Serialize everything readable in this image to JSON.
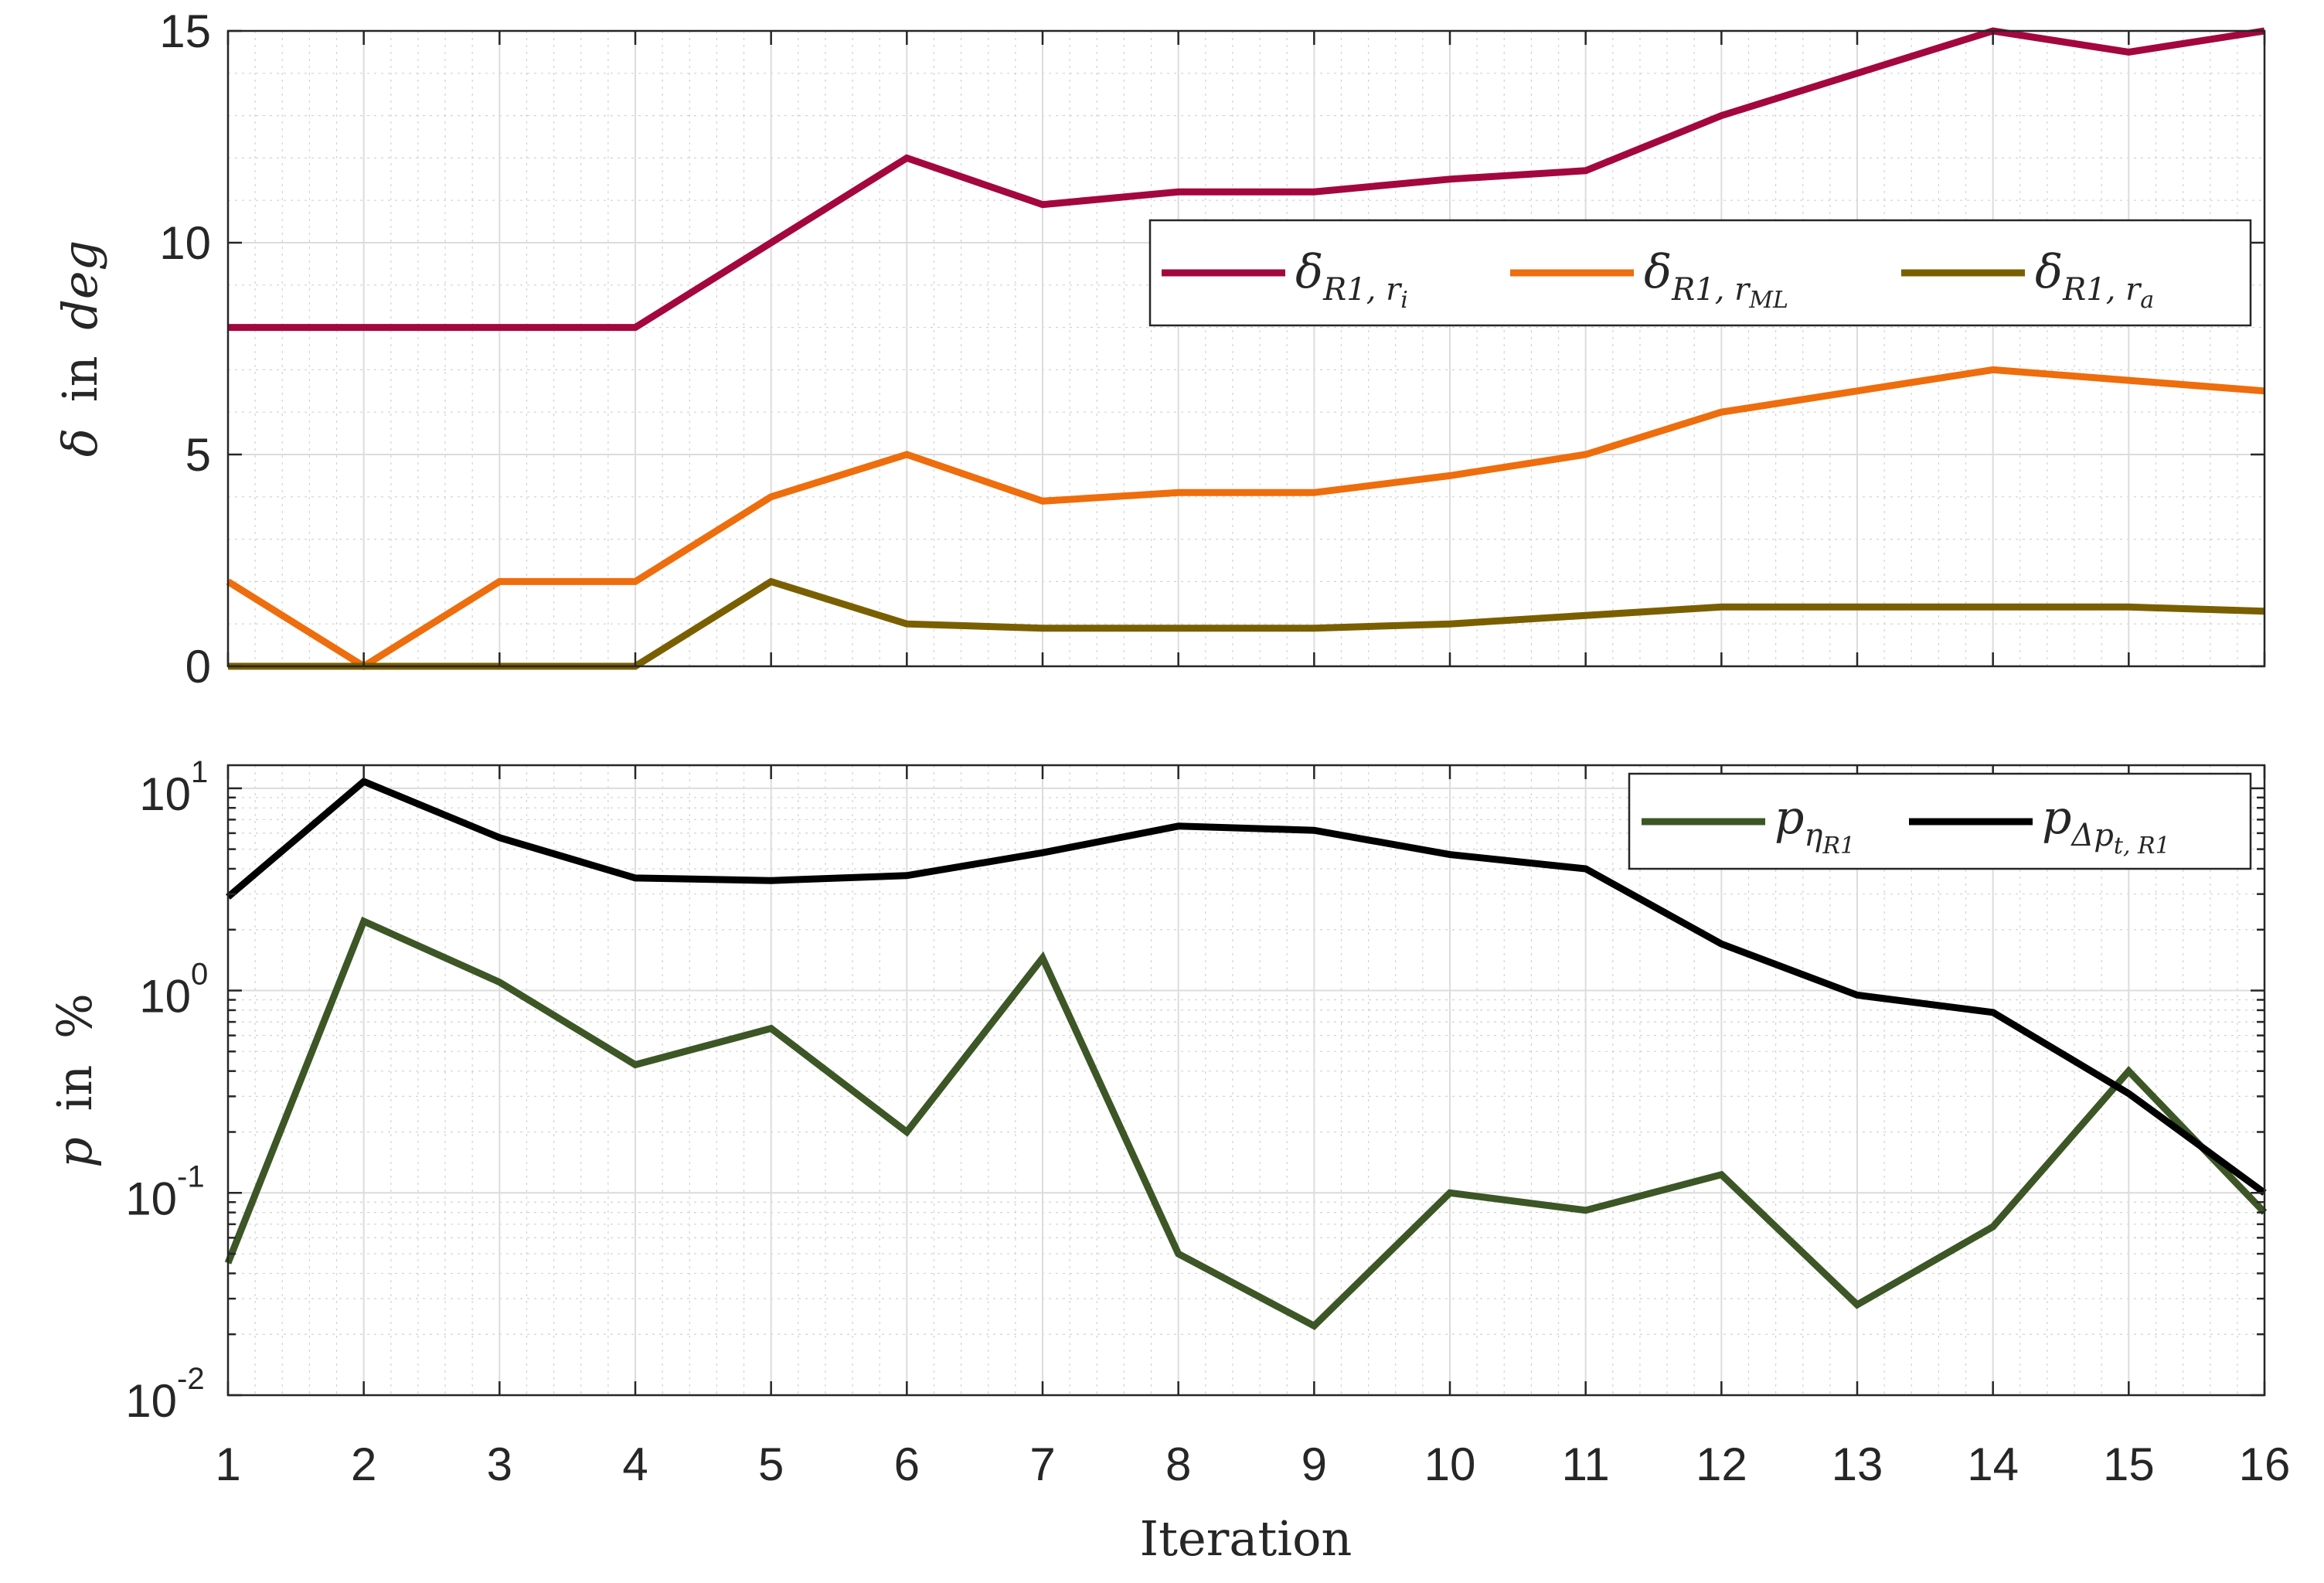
{
  "colors": {
    "delta_ri": "#a3073e",
    "delta_rML": "#ee6d0d",
    "delta_ra": "#7a5f00",
    "p_eta": "#3c5626",
    "p_dp": "#000000"
  },
  "chart_data": [
    {
      "type": "line",
      "x": [
        1,
        2,
        3,
        4,
        5,
        6,
        7,
        8,
        9,
        10,
        11,
        12,
        13,
        14,
        15,
        16
      ],
      "xlim": [
        1,
        16
      ],
      "ylim": [
        0,
        15
      ],
      "yscale": "linear",
      "yticks": [
        "0",
        "5",
        "10",
        "15"
      ],
      "ylabel_symbol": "δ",
      "ylabel_text": "in",
      "ylabel_unit": "deg",
      "grid": true,
      "minor_grid": true,
      "legend_position": "top-right",
      "series": [
        {
          "name": "δR1,ri",
          "legend_main": "δ",
          "legend_sub": "R1, r",
          "legend_subsub": "i",
          "color": "#a3073e",
          "values": [
            8,
            8,
            8,
            8,
            10,
            12,
            10.9,
            11.2,
            11.2,
            11.5,
            11.7,
            13,
            14,
            15,
            14.5,
            15
          ]
        },
        {
          "name": "δR1,rML",
          "legend_main": "δ",
          "legend_sub": "R1, r",
          "legend_subsub": "ML",
          "color": "#ee6d0d",
          "values": [
            2,
            0,
            2,
            2,
            4,
            5,
            3.9,
            4.1,
            4.1,
            4.5,
            5,
            6,
            6.5,
            7,
            6.75,
            6.5
          ]
        },
        {
          "name": "δR1,ra",
          "legend_main": "δ",
          "legend_sub": "R1, r",
          "legend_subsub": "a",
          "color": "#7a5f00",
          "values": [
            0,
            0,
            0,
            0,
            2,
            1,
            0.9,
            0.9,
            0.9,
            1,
            1.2,
            1.4,
            1.4,
            1.4,
            1.4,
            1.3
          ]
        }
      ]
    },
    {
      "type": "line",
      "x": [
        1,
        2,
        3,
        4,
        5,
        6,
        7,
        8,
        9,
        10,
        11,
        12,
        13,
        14,
        15,
        16
      ],
      "xlim": [
        1,
        16
      ],
      "ylim": [
        0.01,
        13
      ],
      "yscale": "log",
      "ytick_bases": [
        "10",
        "10",
        "10",
        "10"
      ],
      "ytick_exponents": [
        "-2",
        "-1",
        "0",
        "1"
      ],
      "xticks": [
        "1",
        "2",
        "3",
        "4",
        "5",
        "6",
        "7",
        "8",
        "9",
        "10",
        "11",
        "12",
        "13",
        "14",
        "15",
        "16"
      ],
      "xlabel": "Iteration",
      "ylabel_symbol": "p",
      "ylabel_text": "in",
      "ylabel_unit": "%",
      "grid": true,
      "minor_grid": true,
      "legend_position": "top-right",
      "series": [
        {
          "name": "pηR1",
          "legend_main": "p",
          "legend_sub": "η",
          "legend_subsub": "R1",
          "color": "#3c5626",
          "values": [
            0.045,
            2.2,
            1.1,
            0.43,
            0.65,
            0.2,
            1.45,
            0.05,
            0.022,
            0.1,
            0.082,
            0.123,
            0.028,
            0.068,
            0.4,
            0.08
          ]
        },
        {
          "name": "pΔpt,R1",
          "legend_main": "p",
          "legend_sub": "Δp",
          "legend_subsub": "t, R1",
          "color": "#000000",
          "values": [
            2.9,
            10.8,
            5.7,
            3.6,
            3.5,
            3.7,
            4.8,
            6.5,
            6.2,
            4.7,
            4.0,
            1.7,
            0.95,
            0.78,
            0.31,
            0.1
          ]
        }
      ]
    }
  ]
}
